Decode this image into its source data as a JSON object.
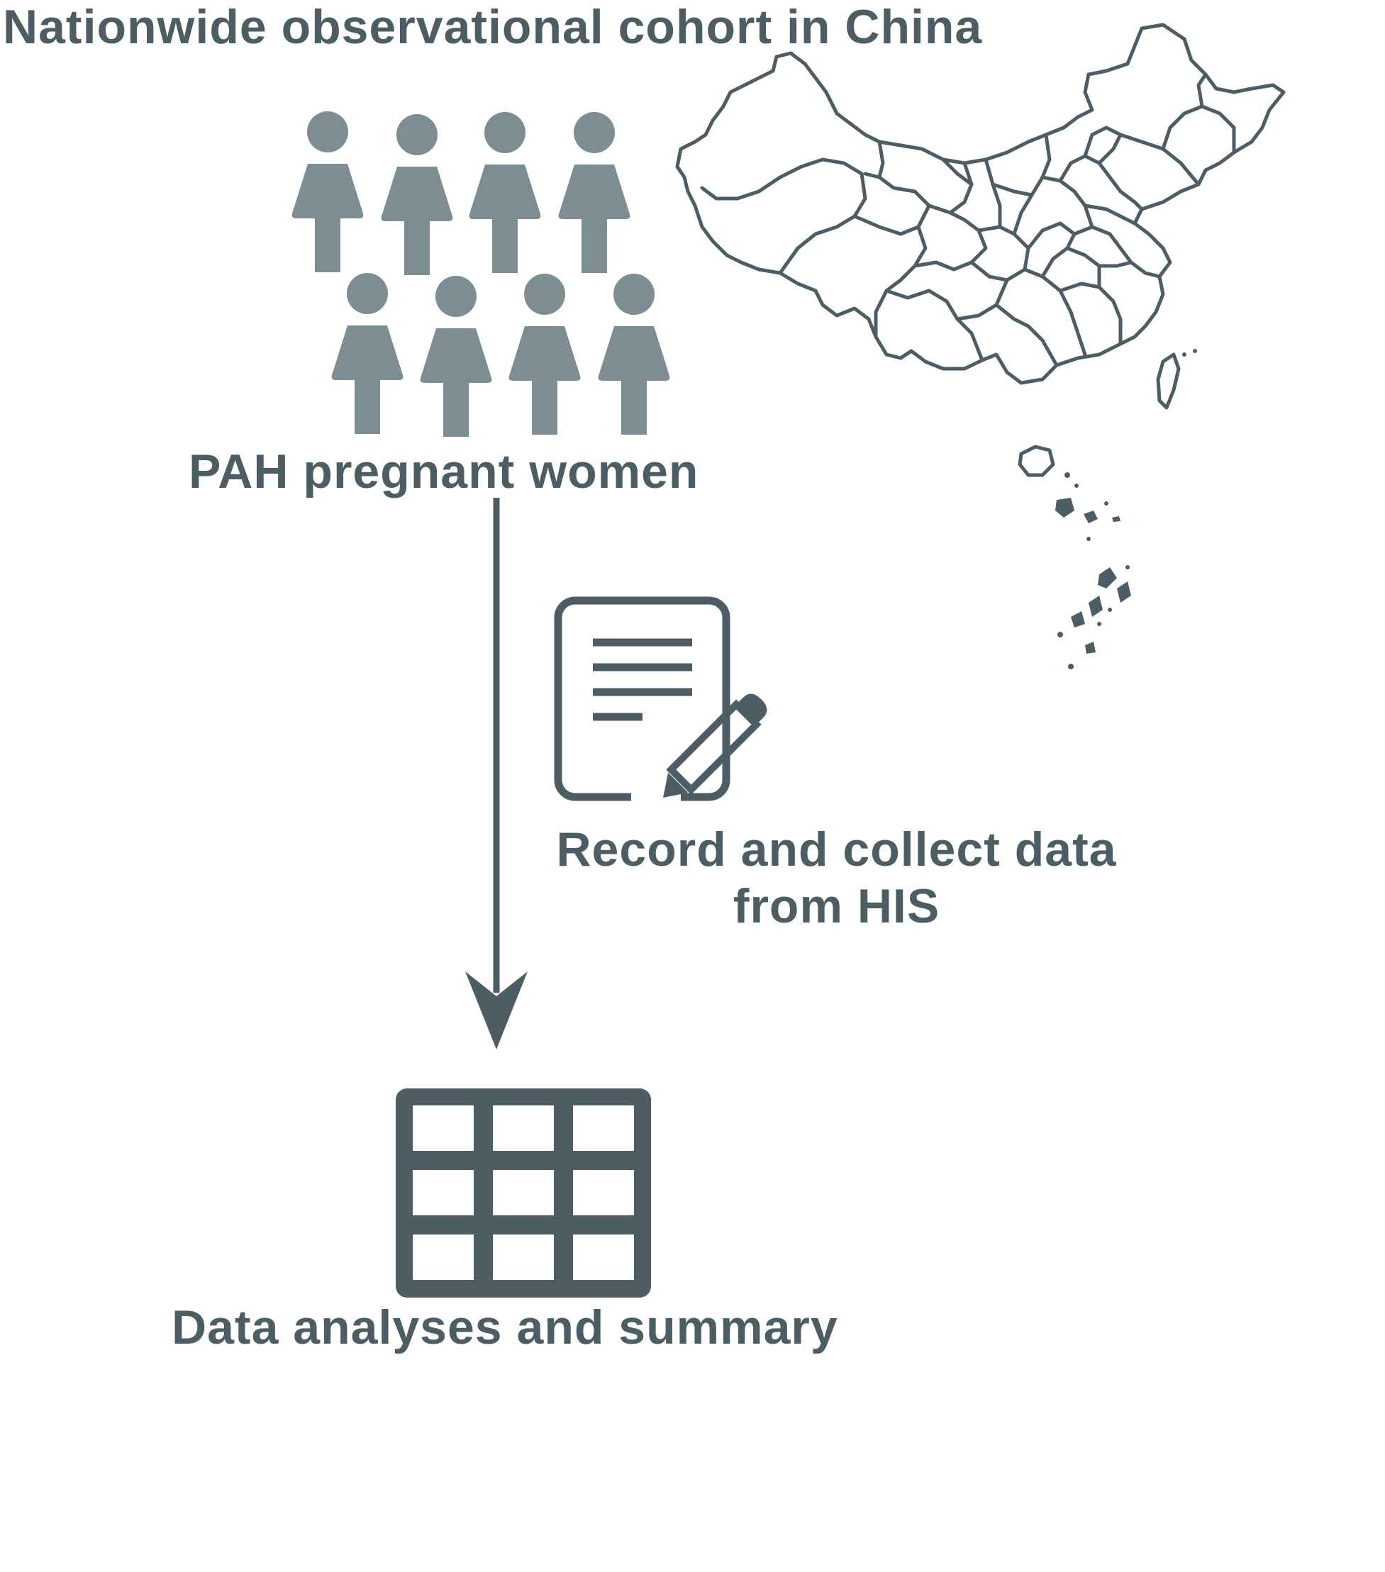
{
  "title": "Nationwide observational cohort in China",
  "cohort": {
    "label": "PAH pregnant women",
    "figure_count": 8
  },
  "data_collection": {
    "line1": "Record and collect data",
    "line2": "from HIS"
  },
  "analysis": {
    "label": "Data analyses and summary"
  },
  "colors": {
    "people": "#7c8e92",
    "dark": "#4d5d64",
    "map_stroke": "#4d5d64"
  },
  "icons": [
    "woman-figure-icon",
    "china-map-icon",
    "document-pencil-icon",
    "down-arrow-icon",
    "table-grid-icon"
  ]
}
